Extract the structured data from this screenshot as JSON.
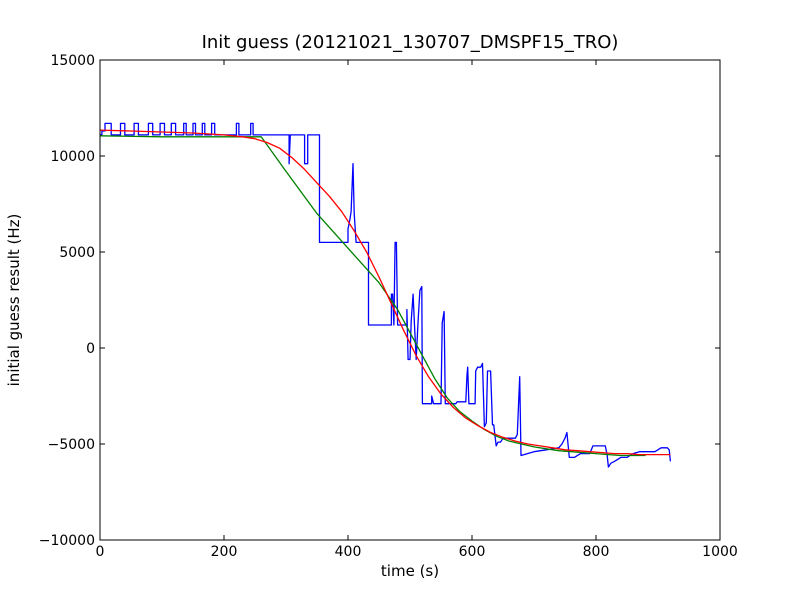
{
  "chart_data": {
    "type": "line",
    "title": "Init guess (20121021_130707_DMSPF15_TRO)",
    "xlabel": "time (s)",
    "ylabel": "initial guess result (Hz)",
    "xlim": [
      0,
      1000
    ],
    "ylim": [
      -10000,
      15000
    ],
    "x_ticks": [
      0,
      200,
      400,
      600,
      800,
      1000
    ],
    "y_ticks": [
      -10000,
      -5000,
      0,
      5000,
      10000,
      15000
    ],
    "x_tick_labels": [
      "0",
      "200",
      "400",
      "600",
      "800",
      "1000"
    ],
    "y_tick_labels": [
      "−10000",
      "−5000",
      "0",
      "5000",
      "10000",
      "15000"
    ],
    "grid": false,
    "series": [
      {
        "color": "#0000ff",
        "points": [
          [
            0,
            11100
          ],
          [
            3,
            11100
          ],
          [
            3,
            11300
          ],
          [
            8,
            11300
          ],
          [
            8,
            11700
          ],
          [
            18,
            11700
          ],
          [
            18,
            11100
          ],
          [
            33,
            11100
          ],
          [
            33,
            11700
          ],
          [
            40,
            11700
          ],
          [
            40,
            11100
          ],
          [
            55,
            11100
          ],
          [
            55,
            11700
          ],
          [
            62,
            11700
          ],
          [
            62,
            11100
          ],
          [
            78,
            11100
          ],
          [
            78,
            11700
          ],
          [
            85,
            11700
          ],
          [
            85,
            11100
          ],
          [
            97,
            11100
          ],
          [
            97,
            11700
          ],
          [
            104,
            11700
          ],
          [
            104,
            11100
          ],
          [
            115,
            11100
          ],
          [
            115,
            11700
          ],
          [
            122,
            11700
          ],
          [
            122,
            11100
          ],
          [
            135,
            11100
          ],
          [
            135,
            11700
          ],
          [
            139,
            11700
          ],
          [
            139,
            11100
          ],
          [
            150,
            11100
          ],
          [
            150,
            11700
          ],
          [
            154,
            11700
          ],
          [
            154,
            11100
          ],
          [
            165,
            11100
          ],
          [
            165,
            11700
          ],
          [
            169,
            11700
          ],
          [
            169,
            11100
          ],
          [
            180,
            11100
          ],
          [
            180,
            11700
          ],
          [
            185,
            11700
          ],
          [
            185,
            11100
          ],
          [
            220,
            11100
          ],
          [
            220,
            11700
          ],
          [
            224,
            11700
          ],
          [
            224,
            11100
          ],
          [
            243,
            11100
          ],
          [
            243,
            11700
          ],
          [
            247,
            11700
          ],
          [
            247,
            11100
          ],
          [
            305,
            11100
          ],
          [
            305,
            9600
          ],
          [
            307,
            11100
          ],
          [
            330,
            11100
          ],
          [
            330,
            9600
          ],
          [
            335,
            9600
          ],
          [
            335,
            11100
          ],
          [
            354,
            11100
          ],
          [
            354,
            5500
          ],
          [
            400,
            5500
          ],
          [
            400,
            6200
          ],
          [
            403,
            6700
          ],
          [
            405,
            7100
          ],
          [
            408,
            9600
          ],
          [
            410,
            7000
          ],
          [
            413,
            5500
          ],
          [
            433,
            5500
          ],
          [
            433,
            1200
          ],
          [
            470,
            1200
          ],
          [
            470,
            2800
          ],
          [
            472,
            2800
          ],
          [
            474,
            1200
          ],
          [
            476,
            5500
          ],
          [
            478,
            5500
          ],
          [
            480,
            1200
          ],
          [
            495,
            1200
          ],
          [
            495,
            2000
          ],
          [
            497,
            -600
          ],
          [
            500,
            -600
          ],
          [
            502,
            1400
          ],
          [
            505,
            2800
          ],
          [
            507,
            1400
          ],
          [
            510,
            -600
          ],
          [
            513,
            1400
          ],
          [
            516,
            3000
          ],
          [
            519,
            3200
          ],
          [
            520,
            -2900
          ],
          [
            535,
            -2900
          ],
          [
            535,
            -2500
          ],
          [
            538,
            -2900
          ],
          [
            550,
            -2900
          ],
          [
            552,
            1300
          ],
          [
            555,
            1900
          ],
          [
            557,
            -2900
          ],
          [
            570,
            -2900
          ],
          [
            574,
            -2900
          ],
          [
            576,
            -2800
          ],
          [
            590,
            -2800
          ],
          [
            592,
            -1400
          ],
          [
            593,
            -1000
          ],
          [
            595,
            -2900
          ],
          [
            605,
            -2900
          ],
          [
            606,
            -1200
          ],
          [
            609,
            -1000
          ],
          [
            614,
            -1000
          ],
          [
            617,
            -800
          ],
          [
            620,
            -4100
          ],
          [
            623,
            -3900
          ],
          [
            625,
            -1200
          ],
          [
            630,
            -1200
          ],
          [
            633,
            -4000
          ],
          [
            635,
            -4000
          ],
          [
            639,
            -5100
          ],
          [
            642,
            -4900
          ],
          [
            646,
            -4900
          ],
          [
            650,
            -4700
          ],
          [
            660,
            -4700
          ],
          [
            670,
            -4700
          ],
          [
            673,
            -4500
          ],
          [
            677,
            -1500
          ],
          [
            679,
            -5600
          ],
          [
            700,
            -5400
          ],
          [
            720,
            -5300
          ],
          [
            740,
            -5200
          ],
          [
            745,
            -5000
          ],
          [
            750,
            -4700
          ],
          [
            753,
            -4400
          ],
          [
            757,
            -5700
          ],
          [
            765,
            -5700
          ],
          [
            775,
            -5500
          ],
          [
            790,
            -5500
          ],
          [
            795,
            -5100
          ],
          [
            810,
            -5100
          ],
          [
            815,
            -5100
          ],
          [
            818,
            -5600
          ],
          [
            820,
            -6200
          ],
          [
            824,
            -6000
          ],
          [
            830,
            -5900
          ],
          [
            840,
            -5700
          ],
          [
            850,
            -5700
          ],
          [
            855,
            -5600
          ],
          [
            860,
            -5500
          ],
          [
            870,
            -5400
          ],
          [
            880,
            -5400
          ],
          [
            895,
            -5400
          ],
          [
            905,
            -5200
          ],
          [
            915,
            -5200
          ],
          [
            918,
            -5300
          ],
          [
            920,
            -5900
          ]
        ]
      },
      {
        "color": "#008000",
        "points": [
          [
            0,
            11050
          ],
          [
            100,
            11000
          ],
          [
            200,
            11000
          ],
          [
            260,
            11000
          ],
          [
            300,
            9200
          ],
          [
            350,
            7000
          ],
          [
            400,
            5200
          ],
          [
            450,
            3400
          ],
          [
            480,
            2000
          ],
          [
            500,
            800
          ],
          [
            520,
            -400
          ],
          [
            540,
            -1600
          ],
          [
            560,
            -2600
          ],
          [
            580,
            -3300
          ],
          [
            600,
            -3800
          ],
          [
            620,
            -4250
          ],
          [
            640,
            -4600
          ],
          [
            660,
            -4850
          ],
          [
            680,
            -5000
          ],
          [
            700,
            -5150
          ],
          [
            720,
            -5250
          ],
          [
            740,
            -5350
          ],
          [
            760,
            -5400
          ],
          [
            780,
            -5450
          ],
          [
            800,
            -5500
          ],
          [
            820,
            -5550
          ],
          [
            840,
            -5600
          ],
          [
            860,
            -5600
          ],
          [
            880,
            -5600
          ]
        ]
      },
      {
        "color": "#ff0000",
        "points": [
          [
            0,
            11350
          ],
          [
            50,
            11300
          ],
          [
            100,
            11250
          ],
          [
            150,
            11200
          ],
          [
            200,
            11100
          ],
          [
            230,
            11000
          ],
          [
            250,
            10900
          ],
          [
            270,
            10700
          ],
          [
            290,
            10400
          ],
          [
            310,
            9900
          ],
          [
            330,
            9300
          ],
          [
            350,
            8600
          ],
          [
            370,
            7900
          ],
          [
            390,
            7100
          ],
          [
            410,
            6100
          ],
          [
            430,
            5000
          ],
          [
            450,
            3700
          ],
          [
            470,
            2300
          ],
          [
            490,
            900
          ],
          [
            510,
            -400
          ],
          [
            530,
            -1500
          ],
          [
            550,
            -2400
          ],
          [
            570,
            -3100
          ],
          [
            590,
            -3650
          ],
          [
            610,
            -4050
          ],
          [
            630,
            -4400
          ],
          [
            650,
            -4650
          ],
          [
            670,
            -4850
          ],
          [
            690,
            -5000
          ],
          [
            710,
            -5100
          ],
          [
            730,
            -5200
          ],
          [
            750,
            -5300
          ],
          [
            770,
            -5350
          ],
          [
            790,
            -5400
          ],
          [
            810,
            -5450
          ],
          [
            830,
            -5500
          ],
          [
            850,
            -5500
          ],
          [
            870,
            -5550
          ],
          [
            890,
            -5550
          ],
          [
            910,
            -5550
          ],
          [
            920,
            -5550
          ]
        ]
      }
    ]
  }
}
